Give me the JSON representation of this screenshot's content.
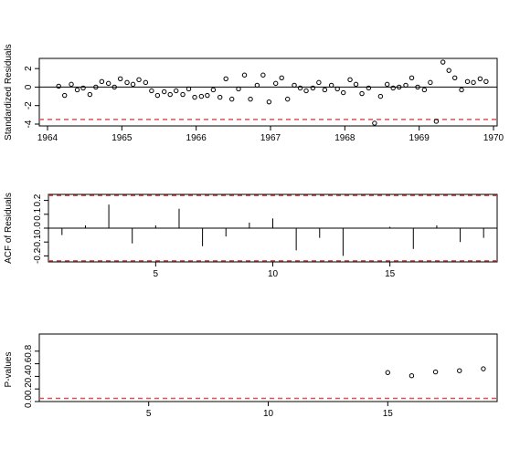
{
  "chart_data": [
    {
      "type": "scatter",
      "ylabel": "Standardized Residuals",
      "xlim": [
        1964,
        1970
      ],
      "ylim": [
        -4,
        3
      ],
      "xticks": [
        1964,
        1965,
        1966,
        1967,
        1968,
        1969,
        1970
      ],
      "yticks": [
        -4,
        -2,
        0,
        2
      ],
      "reference_line": 0,
      "threshold_line": -3.5,
      "threshold_color": "#e05050",
      "points": [
        {
          "x": 1964.15,
          "y": 0.1
        },
        {
          "x": 1964.23,
          "y": -0.9
        },
        {
          "x": 1964.32,
          "y": 0.3
        },
        {
          "x": 1964.4,
          "y": -0.3
        },
        {
          "x": 1964.48,
          "y": -0.1
        },
        {
          "x": 1964.57,
          "y": -0.8
        },
        {
          "x": 1964.65,
          "y": 0.0
        },
        {
          "x": 1964.73,
          "y": 0.6
        },
        {
          "x": 1964.82,
          "y": 0.4
        },
        {
          "x": 1964.9,
          "y": 0.0
        },
        {
          "x": 1964.98,
          "y": 0.9
        },
        {
          "x": 1965.07,
          "y": 0.5
        },
        {
          "x": 1965.15,
          "y": 0.3
        },
        {
          "x": 1965.23,
          "y": 0.8
        },
        {
          "x": 1965.32,
          "y": 0.5
        },
        {
          "x": 1965.4,
          "y": -0.4
        },
        {
          "x": 1965.48,
          "y": -0.9
        },
        {
          "x": 1965.57,
          "y": -0.5
        },
        {
          "x": 1965.65,
          "y": -0.8
        },
        {
          "x": 1965.73,
          "y": -0.4
        },
        {
          "x": 1965.82,
          "y": -0.8
        },
        {
          "x": 1965.9,
          "y": -0.2
        },
        {
          "x": 1965.98,
          "y": -1.1
        },
        {
          "x": 1966.07,
          "y": -1.0
        },
        {
          "x": 1966.15,
          "y": -0.9
        },
        {
          "x": 1966.23,
          "y": -0.3
        },
        {
          "x": 1966.32,
          "y": -1.1
        },
        {
          "x": 1966.4,
          "y": 0.9
        },
        {
          "x": 1966.48,
          "y": -1.3
        },
        {
          "x": 1966.57,
          "y": -0.2
        },
        {
          "x": 1966.65,
          "y": 1.3
        },
        {
          "x": 1966.73,
          "y": -1.3
        },
        {
          "x": 1966.82,
          "y": 0.2
        },
        {
          "x": 1966.9,
          "y": 1.3
        },
        {
          "x": 1966.98,
          "y": -1.6
        },
        {
          "x": 1967.07,
          "y": 0.4
        },
        {
          "x": 1967.15,
          "y": 1.0
        },
        {
          "x": 1967.23,
          "y": -1.3
        },
        {
          "x": 1967.32,
          "y": 0.2
        },
        {
          "x": 1967.4,
          "y": -0.1
        },
        {
          "x": 1967.48,
          "y": -0.4
        },
        {
          "x": 1967.57,
          "y": -0.1
        },
        {
          "x": 1967.65,
          "y": 0.5
        },
        {
          "x": 1967.73,
          "y": -0.3
        },
        {
          "x": 1967.82,
          "y": 0.2
        },
        {
          "x": 1967.9,
          "y": -0.2
        },
        {
          "x": 1967.98,
          "y": -0.6
        },
        {
          "x": 1968.07,
          "y": 0.8
        },
        {
          "x": 1968.15,
          "y": 0.3
        },
        {
          "x": 1968.23,
          "y": -0.7
        },
        {
          "x": 1968.32,
          "y": -0.1
        },
        {
          "x": 1968.4,
          "y": -3.9
        },
        {
          "x": 1968.48,
          "y": -1.0
        },
        {
          "x": 1968.57,
          "y": 0.3
        },
        {
          "x": 1968.65,
          "y": -0.1
        },
        {
          "x": 1968.73,
          "y": 0.0
        },
        {
          "x": 1968.82,
          "y": 0.2
        },
        {
          "x": 1968.9,
          "y": 1.0
        },
        {
          "x": 1968.98,
          "y": 0.0
        },
        {
          "x": 1969.07,
          "y": -0.3
        },
        {
          "x": 1969.15,
          "y": 0.5
        },
        {
          "x": 1969.23,
          "y": -3.7
        },
        {
          "x": 1969.32,
          "y": 2.7
        },
        {
          "x": 1969.4,
          "y": 1.8
        },
        {
          "x": 1969.48,
          "y": 1.0
        },
        {
          "x": 1969.57,
          "y": -0.3
        },
        {
          "x": 1969.65,
          "y": 0.6
        },
        {
          "x": 1969.73,
          "y": 0.5
        },
        {
          "x": 1969.82,
          "y": 0.9
        },
        {
          "x": 1969.9,
          "y": 0.6
        }
      ]
    },
    {
      "type": "bar",
      "ylabel": "ACF of Residuals",
      "xlim": [
        0.5,
        19.5
      ],
      "ylim": [
        -0.25,
        0.25
      ],
      "xticks": [
        5,
        10,
        15
      ],
      "yticks": [
        -0.2,
        -0.1,
        0.0,
        0.1,
        0.2
      ],
      "reference_line": 0,
      "bounds": [
        -0.235,
        0.235
      ],
      "bounds_color": "#e05050",
      "lags": [
        1,
        2,
        3,
        4,
        5,
        6,
        7,
        8,
        9,
        10,
        11,
        12,
        13,
        14,
        15,
        16,
        17,
        18,
        19
      ],
      "values": [
        -0.05,
        0.02,
        0.17,
        -0.11,
        0.02,
        0.14,
        -0.13,
        -0.06,
        0.04,
        0.07,
        -0.16,
        -0.07,
        -0.2,
        0.0,
        0.01,
        -0.15,
        0.02,
        -0.1,
        -0.07
      ]
    },
    {
      "type": "scatter",
      "ylabel": "P-values",
      "xlim": [
        0.5,
        19.5
      ],
      "ylim": [
        0,
        1
      ],
      "xticks": [
        5,
        10,
        15
      ],
      "yticks": [
        0.0,
        0.2,
        0.4,
        0.6,
        0.8
      ],
      "threshold_line": 0.05,
      "threshold_color": "#e05050",
      "points": [
        {
          "x": 15,
          "y": 0.46
        },
        {
          "x": 16,
          "y": 0.41
        },
        {
          "x": 17,
          "y": 0.47
        },
        {
          "x": 18,
          "y": 0.49
        },
        {
          "x": 19,
          "y": 0.52
        }
      ]
    }
  ]
}
